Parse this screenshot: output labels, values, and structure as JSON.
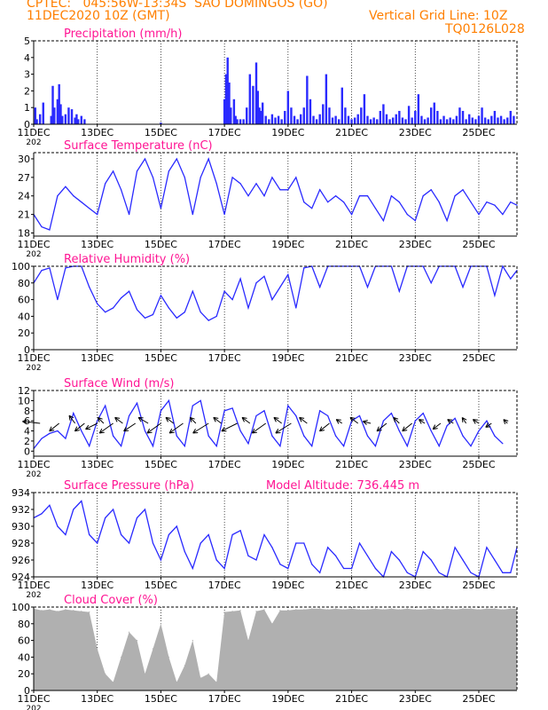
{
  "header": {
    "line1": "CPTEC:   045:56W-13:34S  SAO DOMINGOS (GO)",
    "line2": "11DEC2020 10Z (GMT)",
    "grid_note": "Vertical Grid Line: 10Z",
    "model_code": "TQ0126L028",
    "model_altitude": "Model Altitude: 736.445 m"
  },
  "colors": {
    "header": "#ff7f00",
    "title": "#ff1493",
    "series": "#2a2aff",
    "cloud": "#b0b0b0",
    "arrow": "#000000"
  },
  "x_axis": {
    "labels": [
      "11DEC",
      "13DEC",
      "15DEC",
      "17DEC",
      "19DEC",
      "21DEC",
      "23DEC",
      "25DEC"
    ],
    "label_days": [
      0,
      2,
      4,
      6,
      8,
      10,
      12,
      14
    ],
    "range_days": [
      0,
      15.2
    ],
    "truncated_year": "202"
  },
  "chart_data": [
    {
      "type": "bar",
      "title": "Precipitation (mm/h)",
      "ylim": [
        0,
        5
      ],
      "yticks": [
        "0",
        "1",
        "2",
        "3",
        "4",
        "5"
      ],
      "x_days": [
        0.05,
        0.1,
        0.2,
        0.3,
        0.55,
        0.6,
        0.65,
        0.75,
        0.8,
        0.85,
        0.9,
        1.0,
        1.1,
        1.2,
        1.3,
        1.35,
        1.4,
        1.5,
        1.6,
        4.0,
        6.0,
        6.05,
        6.1,
        6.15,
        6.2,
        6.3,
        6.35,
        6.4,
        6.5,
        6.6,
        6.7,
        6.8,
        6.9,
        7.0,
        7.05,
        7.1,
        7.15,
        7.2,
        7.3,
        7.4,
        7.5,
        7.6,
        7.7,
        7.8,
        7.9,
        8.0,
        8.1,
        8.2,
        8.3,
        8.4,
        8.5,
        8.6,
        8.7,
        8.8,
        8.9,
        9.0,
        9.1,
        9.2,
        9.3,
        9.4,
        9.5,
        9.6,
        9.7,
        9.8,
        9.9,
        10.0,
        10.1,
        10.2,
        10.3,
        10.4,
        10.5,
        10.6,
        10.7,
        10.8,
        10.9,
        11.0,
        11.1,
        11.2,
        11.3,
        11.4,
        11.5,
        11.6,
        11.7,
        11.8,
        11.9,
        12.0,
        12.1,
        12.2,
        12.3,
        12.4,
        12.5,
        12.6,
        12.7,
        12.8,
        12.9,
        13.0,
        13.1,
        13.2,
        13.3,
        13.4,
        13.5,
        13.6,
        13.7,
        13.8,
        13.9,
        14.0,
        14.1,
        14.2,
        14.3,
        14.4,
        14.5,
        14.6,
        14.7,
        14.8,
        14.9,
        15.0,
        15.1
      ],
      "values": [
        1.0,
        0.3,
        0.6,
        1.3,
        0.5,
        2.3,
        1.0,
        1.5,
        2.4,
        1.2,
        0.5,
        0.6,
        1.0,
        0.9,
        0.4,
        0.6,
        0.3,
        0.5,
        0.3,
        0.1,
        1.5,
        3.0,
        4.0,
        2.5,
        1.0,
        1.5,
        0.5,
        0.3,
        0.3,
        0.3,
        1.0,
        3.0,
        2.3,
        3.7,
        2.0,
        1.0,
        0.8,
        1.3,
        0.5,
        0.3,
        0.6,
        0.4,
        0.5,
        0.3,
        0.8,
        2.0,
        1.0,
        0.5,
        0.3,
        0.6,
        1.0,
        2.9,
        1.5,
        0.5,
        0.3,
        0.6,
        1.2,
        3.0,
        1.0,
        0.4,
        0.5,
        0.3,
        2.2,
        1.0,
        0.5,
        0.3,
        0.4,
        0.6,
        1.0,
        1.8,
        0.5,
        0.3,
        0.4,
        0.3,
        0.8,
        1.2,
        0.6,
        0.3,
        0.4,
        0.6,
        0.8,
        0.4,
        0.3,
        1.1,
        0.4,
        0.8,
        1.8,
        0.5,
        0.3,
        0.4,
        1.0,
        1.3,
        0.8,
        0.3,
        0.5,
        0.3,
        0.4,
        0.3,
        0.5,
        1.0,
        0.8,
        0.3,
        0.6,
        0.4,
        0.3,
        0.5,
        1.0,
        0.4,
        0.3,
        0.5,
        0.8,
        0.4,
        0.5,
        0.3,
        0.4,
        0.8,
        0.5
      ]
    },
    {
      "type": "line",
      "title": "Surface Temperature (nC)",
      "ylim": [
        17.5,
        31
      ],
      "yticks": [
        "18",
        "21",
        "24",
        "27",
        "30"
      ],
      "x_days": [
        0,
        0.25,
        0.5,
        0.75,
        1.0,
        1.25,
        1.5,
        1.75,
        2.0,
        2.25,
        2.5,
        2.75,
        3.0,
        3.25,
        3.5,
        3.75,
        4.0,
        4.25,
        4.5,
        4.75,
        5.0,
        5.25,
        5.5,
        5.75,
        6.0,
        6.25,
        6.5,
        6.75,
        7.0,
        7.25,
        7.5,
        7.75,
        8.0,
        8.25,
        8.5,
        8.75,
        9.0,
        9.25,
        9.5,
        9.75,
        10.0,
        10.25,
        10.5,
        10.75,
        11.0,
        11.25,
        11.5,
        11.75,
        12.0,
        12.25,
        12.5,
        12.75,
        13.0,
        13.25,
        13.5,
        13.75,
        14.0,
        14.25,
        14.5,
        14.75,
        15.0,
        15.2
      ],
      "series": [
        {
          "values": [
            21,
            19,
            18.5,
            24,
            25.5,
            24,
            23,
            22,
            21,
            26,
            28,
            25,
            21,
            28,
            30,
            27,
            22,
            28,
            30,
            27,
            21,
            27,
            30,
            26,
            21,
            27,
            26,
            24,
            26,
            24,
            27,
            25,
            25,
            27,
            23,
            22,
            25,
            23,
            24,
            23,
            21,
            24,
            24,
            22,
            20,
            24,
            23,
            21,
            20,
            24,
            25,
            23,
            20,
            24,
            25,
            23,
            21,
            23,
            22.5,
            21,
            23,
            22.5
          ]
        }
      ]
    },
    {
      "type": "line",
      "title": "Relative Humidity (%)",
      "ylim": [
        0,
        100
      ],
      "yticks": [
        "0",
        "20",
        "40",
        "60",
        "80",
        "100"
      ],
      "x_days": [
        0,
        0.25,
        0.5,
        0.75,
        1.0,
        1.25,
        1.5,
        1.75,
        2.0,
        2.25,
        2.5,
        2.75,
        3.0,
        3.25,
        3.5,
        3.75,
        4.0,
        4.25,
        4.5,
        4.75,
        5.0,
        5.25,
        5.5,
        5.75,
        6.0,
        6.25,
        6.5,
        6.75,
        7.0,
        7.25,
        7.5,
        7.75,
        8.0,
        8.25,
        8.5,
        8.75,
        9.0,
        9.25,
        9.5,
        9.75,
        10.0,
        10.25,
        10.5,
        10.75,
        11.0,
        11.25,
        11.5,
        11.75,
        12.0,
        12.25,
        12.5,
        12.75,
        13.0,
        13.25,
        13.5,
        13.75,
        14.0,
        14.25,
        14.5,
        14.75,
        15.0,
        15.2
      ],
      "series": [
        {
          "values": [
            80,
            95,
            98,
            60,
            98,
            100,
            100,
            75,
            55,
            45,
            50,
            62,
            70,
            48,
            38,
            42,
            65,
            50,
            38,
            45,
            70,
            45,
            35,
            40,
            70,
            60,
            85,
            50,
            80,
            88,
            60,
            75,
            90,
            50,
            98,
            100,
            75,
            100,
            100,
            100,
            100,
            100,
            75,
            100,
            100,
            100,
            70,
            100,
            100,
            100,
            80,
            100,
            100,
            100,
            75,
            100,
            100,
            100,
            65,
            100,
            85,
            95
          ]
        }
      ]
    },
    {
      "type": "line",
      "title": "Surface Wind (m/s)",
      "ylim": [
        -1,
        12
      ],
      "yticks": [
        "0",
        "2",
        "4",
        "6",
        "8",
        "10",
        "12"
      ],
      "x_days": [
        0,
        0.25,
        0.5,
        0.75,
        1.0,
        1.25,
        1.5,
        1.75,
        2.0,
        2.25,
        2.5,
        2.75,
        3.0,
        3.25,
        3.5,
        3.75,
        4.0,
        4.25,
        4.5,
        4.75,
        5.0,
        5.25,
        5.5,
        5.75,
        6.0,
        6.25,
        6.5,
        6.75,
        7.0,
        7.25,
        7.5,
        7.75,
        8.0,
        8.25,
        8.5,
        8.75,
        9.0,
        9.25,
        9.5,
        9.75,
        10.0,
        10.25,
        10.5,
        10.75,
        11.0,
        11.25,
        11.5,
        11.75,
        12.0,
        12.25,
        12.5,
        12.75,
        13.0,
        13.25,
        13.5,
        13.75,
        14.0,
        14.25,
        14.5,
        14.75,
        15.0,
        15.2
      ],
      "series": [
        {
          "values": [
            0.5,
            2.5,
            3.5,
            4,
            2.5,
            7.5,
            4,
            1,
            6,
            9,
            3,
            1,
            7,
            9.5,
            4,
            1,
            8,
            10,
            3,
            1,
            9,
            10,
            3,
            1,
            8,
            8.5,
            4,
            1.5,
            7,
            8,
            3,
            1,
            9,
            7,
            3,
            1,
            8,
            7,
            3,
            1,
            6,
            7,
            3,
            1,
            6,
            7.5,
            4,
            1,
            6,
            7.5,
            4,
            1,
            5,
            6.5,
            3,
            1,
            4,
            6,
            3,
            1.5
          ]
        }
      ],
      "arrows": [
        [
          0.2,
          -9,
          1
        ],
        [
          0.8,
          -5,
          -4
        ],
        [
          1.3,
          -3,
          4
        ],
        [
          1.6,
          -5,
          -4
        ],
        [
          2.0,
          -6,
          -3
        ],
        [
          2.2,
          -3,
          3
        ],
        [
          2.5,
          -7,
          -5
        ],
        [
          2.8,
          -4,
          3
        ],
        [
          3.2,
          -6,
          -4
        ],
        [
          3.6,
          -5,
          3
        ],
        [
          4.0,
          -7,
          -5
        ],
        [
          4.4,
          -4,
          3
        ],
        [
          4.7,
          -7,
          -5
        ],
        [
          5.1,
          -3,
          3
        ],
        [
          5.5,
          -8,
          -5
        ],
        [
          5.9,
          -4,
          3
        ],
        [
          6.4,
          -8,
          -4
        ],
        [
          6.8,
          -4,
          3
        ],
        [
          7.3,
          -7,
          -5
        ],
        [
          7.8,
          -4,
          3
        ],
        [
          8.1,
          -8,
          -5
        ],
        [
          8.6,
          -4,
          3
        ],
        [
          9.3,
          -5,
          -4
        ],
        [
          9.7,
          -3,
          2
        ],
        [
          10.2,
          -4,
          3
        ],
        [
          10.6,
          -4,
          1
        ],
        [
          11.1,
          -5,
          -4
        ],
        [
          11.5,
          -3,
          3
        ],
        [
          11.9,
          -5,
          -4
        ],
        [
          12.3,
          -3,
          2
        ],
        [
          12.8,
          -4,
          -3
        ],
        [
          13.2,
          -3,
          2
        ],
        [
          13.6,
          -2,
          3
        ],
        [
          14.0,
          -3,
          2
        ],
        [
          14.4,
          -3,
          -2
        ],
        [
          14.9,
          -2,
          2
        ]
      ]
    },
    {
      "type": "line",
      "title": "Surface Pressure (hPa)",
      "ylim": [
        924,
        934
      ],
      "yticks": [
        "924",
        "926",
        "928",
        "930",
        "932",
        "934"
      ],
      "x_days": [
        0,
        0.25,
        0.5,
        0.75,
        1.0,
        1.25,
        1.5,
        1.75,
        2.0,
        2.25,
        2.5,
        2.75,
        3.0,
        3.25,
        3.5,
        3.75,
        4.0,
        4.25,
        4.5,
        4.75,
        5.0,
        5.25,
        5.5,
        5.75,
        6.0,
        6.25,
        6.5,
        6.75,
        7.0,
        7.25,
        7.5,
        7.75,
        8.0,
        8.25,
        8.5,
        8.75,
        9.0,
        9.25,
        9.5,
        9.75,
        10.0,
        10.25,
        10.5,
        10.75,
        11.0,
        11.25,
        11.5,
        11.75,
        12.0,
        12.25,
        12.5,
        12.75,
        13.0,
        13.25,
        13.5,
        13.75,
        14.0,
        14.25,
        14.5,
        14.75,
        15.0,
        15.2
      ],
      "series": [
        {
          "values": [
            931,
            931.5,
            932.5,
            930,
            929,
            932,
            933,
            929,
            928,
            931,
            932,
            929,
            928,
            931,
            932,
            928,
            926,
            929,
            930,
            927,
            925,
            928,
            929,
            926,
            925,
            929,
            929.5,
            926.5,
            926,
            929,
            927.5,
            925.5,
            925,
            928,
            928,
            925.5,
            924.5,
            927.5,
            926.5,
            925,
            925,
            928,
            926.5,
            925,
            924,
            927,
            926,
            924.5,
            924,
            927,
            926,
            924.5,
            924,
            927.5,
            926,
            924.5,
            924,
            927.5,
            926,
            924.5,
            924.5,
            927.5
          ]
        }
      ]
    },
    {
      "type": "area",
      "title": "Cloud Cover (%)",
      "ylim": [
        0,
        100
      ],
      "yticks": [
        "0",
        "20",
        "40",
        "60",
        "80",
        "100"
      ],
      "x_days": [
        0,
        0.25,
        0.5,
        0.75,
        1.0,
        1.25,
        1.5,
        1.75,
        2.0,
        2.25,
        2.5,
        2.75,
        3.0,
        3.25,
        3.5,
        3.75,
        4.0,
        4.25,
        4.5,
        4.75,
        5.0,
        5.25,
        5.5,
        5.75,
        6.0,
        6.25,
        6.5,
        6.75,
        7.0,
        7.25,
        7.5,
        7.75,
        8.0,
        8.25,
        8.5,
        8.75,
        9.0,
        9.25,
        9.5,
        9.75,
        10.0,
        10.25,
        10.5,
        10.75,
        11.0,
        11.25,
        11.5,
        11.75,
        12.0,
        12.25,
        12.5,
        12.75,
        13.0,
        13.25,
        13.5,
        13.75,
        14.0,
        14.25,
        14.5,
        14.75,
        15.0,
        15.2
      ],
      "series": [
        {
          "values": [
            98,
            96,
            97,
            95,
            97,
            96,
            95,
            94,
            50,
            20,
            10,
            40,
            70,
            60,
            20,
            50,
            80,
            40,
            10,
            30,
            60,
            15,
            20,
            10,
            94,
            95,
            96,
            60,
            95,
            97,
            80,
            96,
            96,
            97,
            97,
            98,
            98,
            97,
            98,
            97,
            98,
            97,
            97,
            98,
            97,
            98,
            97,
            98,
            97,
            97,
            98,
            97,
            98,
            97,
            98,
            98,
            97,
            98,
            98,
            97,
            98,
            98
          ]
        }
      ]
    }
  ]
}
